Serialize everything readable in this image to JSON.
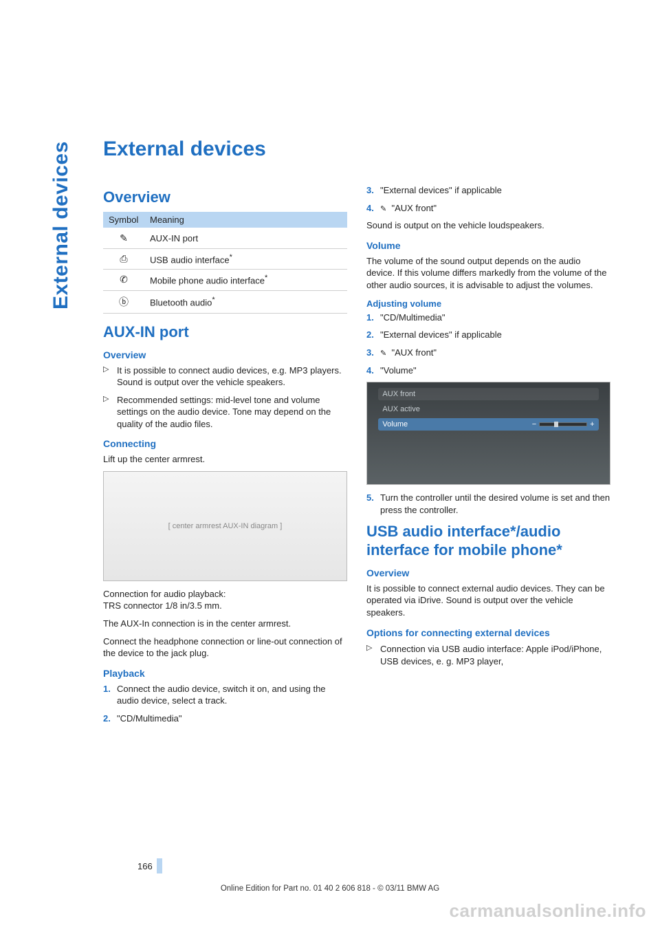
{
  "tab": "External devices",
  "title": "External devices",
  "left": {
    "overview_h": "Overview",
    "table": {
      "head_symbol": "Symbol",
      "head_meaning": "Meaning",
      "rows": [
        {
          "icon": "✎",
          "meaning": "AUX-IN port",
          "star": false
        },
        {
          "icon": "⎙",
          "meaning": "USB audio interface",
          "star": true
        },
        {
          "icon": "✆",
          "meaning": "Mobile phone audio interface",
          "star": true
        },
        {
          "icon": "ⓑ",
          "meaning": "Bluetooth audio",
          "star": true
        }
      ]
    },
    "aux_h": "AUX-IN port",
    "aux_overview_h": "Overview",
    "aux_bullets": [
      "It is possible to connect audio devices, e.g. MP3 players. Sound is output over the vehicle speakers.",
      "Recommended settings: mid-level tone and volume settings on the audio device. Tone may depend on the quality of the audio files."
    ],
    "connecting_h": "Connecting",
    "connecting_p": "Lift up the center armrest.",
    "fig1_alt": "[ center armrest AUX-IN diagram ]",
    "conn_p1": "Connection for audio playback:\nTRS connector 1/8 in/3.5 mm.",
    "conn_p2": "The AUX-In connection is in the center armrest.",
    "conn_p3": "Connect the headphone connection or line-out connection of the device to the jack plug.",
    "playback_h": "Playback",
    "playback_steps": [
      "Connect the audio device, switch it on, and using the audio device, select a track.",
      "\"CD/Multimedia\""
    ]
  },
  "right": {
    "cont_steps": [
      "\"External devices\" if applicable",
      "\"AUX front\""
    ],
    "cont_step_aux_icon": "✎",
    "sound_p": "Sound is output on the vehicle loudspeakers.",
    "volume_h": "Volume",
    "volume_p": "The volume of the sound output depends on the audio device. If this volume differs markedly from the volume of the other audio sources, it is advisable to adjust the volumes.",
    "adjvol_h": "Adjusting volume",
    "adjvol_steps": [
      "\"CD/Multimedia\"",
      "\"External devices\" if applicable",
      "\"AUX front\"",
      "\"Volume\""
    ],
    "adjvol_icon_step": 3,
    "adjvol_icon": "✎",
    "screen": {
      "title": "AUX front",
      "sub": "AUX active",
      "row": "Volume",
      "minus": "−",
      "plus": "+"
    },
    "adjvol_after_fig": "Turn the controller until the desired volume is set and then press the controller.",
    "usb_h": "USB audio interface*/audio interface for mobile phone*",
    "usb_overview_h": "Overview",
    "usb_overview_p": "It is possible to connect external audio devices. They can be operated via iDrive. Sound is output over the vehicle speakers.",
    "usb_options_h": "Options for connecting external devices",
    "usb_bullets": [
      "Connection via USB audio interface: Apple iPod/iPhone, USB devices, e. g. MP3 player,"
    ]
  },
  "page_number": "166",
  "footer": "Online Edition for Part no. 01 40 2 606 818 - © 03/11 BMW AG",
  "watermark": "carmanualsonline.info"
}
